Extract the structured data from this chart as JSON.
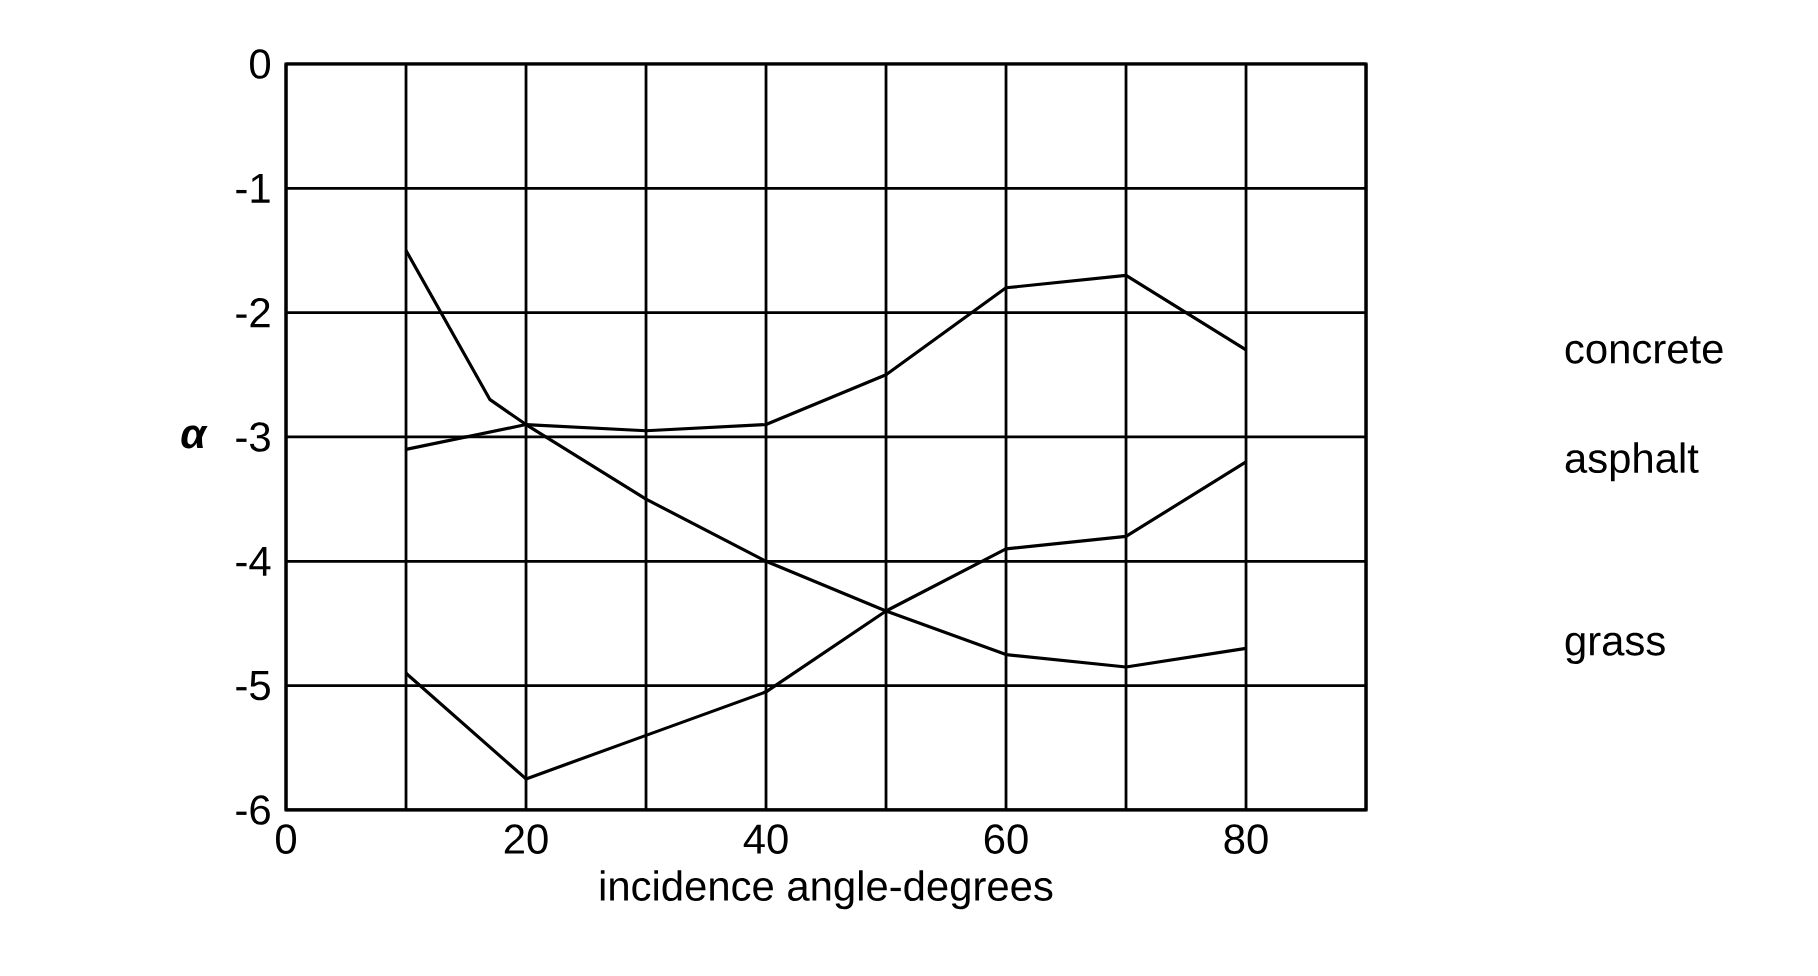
{
  "chart_data": {
    "type": "line",
    "xlabel": "incidence angle-degrees",
    "ylabel": "α",
    "xlim": [
      0,
      90
    ],
    "ylim": [
      -6,
      0
    ],
    "xticks": [
      0,
      {
        "value": 10,
        "label": null
      },
      20,
      {
        "value": 30,
        "label": null
      },
      40,
      {
        "value": 50,
        "label": null
      },
      60,
      {
        "value": 70,
        "label": null
      },
      80,
      {
        "value": 90,
        "label": null
      }
    ],
    "yticks": [
      0,
      -1,
      -2,
      -3,
      -4,
      -5,
      -6
    ],
    "grid": true,
    "legend": false,
    "marker": "none",
    "line_style": "solid",
    "series": [
      {
        "name": "concrete",
        "color": "#000000",
        "x": [
          10,
          20,
          30,
          40,
          50,
          60,
          70,
          80
        ],
        "values": [
          -3.1,
          -2.9,
          -2.95,
          -2.9,
          -2.5,
          -1.8,
          -1.7,
          -2.3
        ]
      },
      {
        "name": "asphalt",
        "color": "#000000",
        "x": [
          10,
          20,
          30,
          40,
          50,
          60,
          70,
          80
        ],
        "values": [
          -4.9,
          -5.75,
          -5.4,
          -5.05,
          -4.4,
          -3.9,
          -3.8,
          -3.2
        ]
      },
      {
        "name": "grass",
        "color": "#000000",
        "x": [
          10,
          17,
          20,
          30,
          40,
          50,
          60,
          70,
          80
        ],
        "values": [
          -1.5,
          -2.7,
          -2.9,
          -3.5,
          -4.0,
          -4.4,
          -4.75,
          -4.85,
          -4.7
        ]
      }
    ]
  }
}
